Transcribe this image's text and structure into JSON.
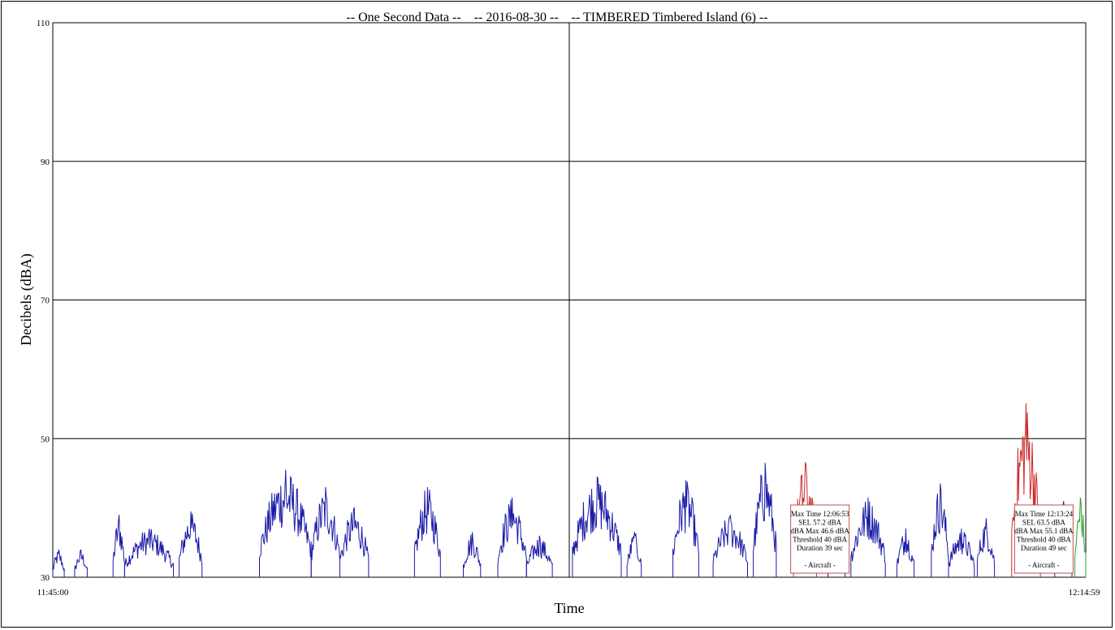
{
  "chart_data": {
    "type": "line",
    "title": "-- One Second Data --    -- 2016-08-30 --    -- TIMBERED Timbered Island (6) --",
    "xlabel": "Time",
    "ylabel": "Decibels (dBA)",
    "ylim": [
      30,
      110
    ],
    "yticks": [
      30,
      50,
      70,
      90,
      110
    ],
    "xlim": [
      "11:45:00",
      "12:14:59"
    ],
    "xtick_labels": [
      "11:45:00",
      "12:14:59"
    ],
    "grid": true,
    "legend": "none",
    "colors": {
      "background": "#ffffff",
      "grid": "#000000",
      "series": "#1a1aa8",
      "event": "#cc2a2a",
      "tail": "#2ea02e",
      "box_border": "#c05050"
    },
    "series": [
      {
        "role": "level",
        "color": "#1a1aa8",
        "bursts": [
          {
            "start": "11:45:00",
            "end": "11:45:20",
            "peak": 34
          },
          {
            "start": "11:45:38",
            "end": "11:46:00",
            "peak": 34
          },
          {
            "start": "11:46:45",
            "end": "11:47:05",
            "peak": 39
          },
          {
            "start": "11:47:05",
            "end": "11:48:30",
            "peak": 37
          },
          {
            "start": "11:48:40",
            "end": "11:49:20",
            "peak": 39.5
          },
          {
            "start": "11:51:00",
            "end": "11:52:30",
            "peak": 45.5
          },
          {
            "start": "11:52:30",
            "end": "11:53:20",
            "peak": 43
          },
          {
            "start": "11:53:20",
            "end": "11:54:10",
            "peak": 40
          },
          {
            "start": "11:55:30",
            "end": "11:56:15",
            "peak": 43
          },
          {
            "start": "11:56:55",
            "end": "11:57:25",
            "peak": 36.5
          },
          {
            "start": "11:57:55",
            "end": "11:58:45",
            "peak": 41.5
          },
          {
            "start": "11:58:45",
            "end": "11:59:30",
            "peak": 36
          },
          {
            "start": "12:00:05",
            "end": "12:01:30",
            "peak": 44.5
          },
          {
            "start": "12:01:40",
            "end": "12:02:05",
            "peak": 36.5
          },
          {
            "start": "12:03:00",
            "end": "12:03:45",
            "peak": 44
          },
          {
            "start": "12:04:10",
            "end": "12:05:10",
            "peak": 39
          },
          {
            "start": "12:05:20",
            "end": "12:06:00",
            "peak": 46.5
          },
          {
            "start": "12:07:30",
            "end": "12:08:00",
            "peak": 38
          },
          {
            "start": "12:08:10",
            "end": "12:09:10",
            "peak": 41.5
          },
          {
            "start": "12:09:30",
            "end": "12:10:00",
            "peak": 37
          },
          {
            "start": "12:10:30",
            "end": "12:11:00",
            "peak": 43.5
          },
          {
            "start": "12:11:00",
            "end": "12:11:45",
            "peak": 37
          },
          {
            "start": "12:11:50",
            "end": "12:12:20",
            "peak": 38.5
          },
          {
            "start": "12:14:05",
            "end": "12:14:35",
            "peak": 41
          }
        ]
      },
      {
        "role": "aircraft-event",
        "color": "#cc2a2a",
        "bursts": [
          {
            "start": "12:06:30",
            "end": "12:07:10",
            "peak": 46.6
          },
          {
            "start": "12:12:50",
            "end": "12:13:40",
            "peak": 55.1
          }
        ]
      },
      {
        "role": "tail",
        "color": "#2ea02e",
        "bursts": [
          {
            "start": "12:14:40",
            "end": "12:14:59",
            "peak": 41.5
          }
        ]
      }
    ],
    "annotations": [
      {
        "anchor_time": "12:07:16",
        "lines": [
          "Max Time 12:06:53",
          "SEL 57.2 dBA",
          "dBA Max 46.6 dBA",
          "Threshold 40 dBA",
          "Duration 39 sec",
          "",
          "- Aircraft -"
        ]
      },
      {
        "anchor_time": "12:13:46",
        "lines": [
          "Max Time 12:13:24",
          "SEL 63.5 dBA",
          "dBA Max 55.1 dBA",
          "Threshold 40 dBA",
          "Duration 49 sec",
          "",
          "- Aircraft -"
        ]
      }
    ]
  }
}
